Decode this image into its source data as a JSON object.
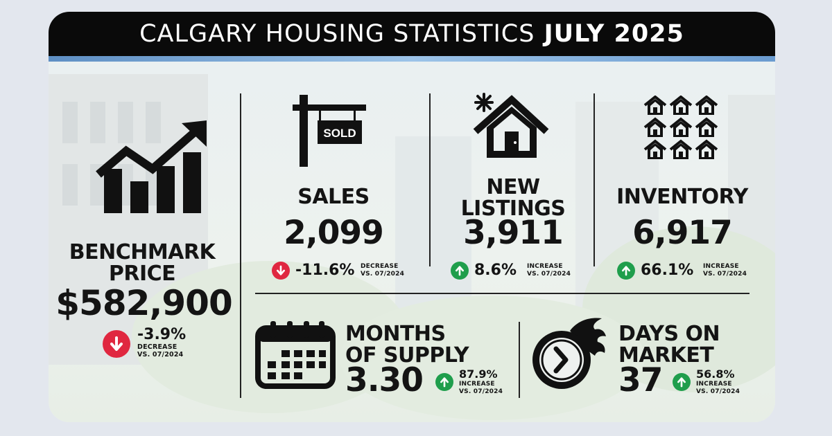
{
  "header": {
    "title_prefix": "CALGARY HOUSING STATISTICS",
    "title_suffix": "JULY 2025"
  },
  "colors": {
    "decrease": "#e02740",
    "increase": "#1f9e4c",
    "header_bg": "#0a0a0a",
    "accent_line": "#6a9bd0"
  },
  "benchmark": {
    "label_line1": "BENCHMARK",
    "label_line2": "PRICE",
    "value": "$582,900",
    "change": "-3.9%",
    "direction": "down",
    "note_line1": "DECREASE",
    "note_line2": "VS. 07/2024",
    "icon": "rising-bar-chart-icon"
  },
  "sales": {
    "label": "SALES",
    "value": "2,099",
    "change": "-11.6%",
    "direction": "down",
    "note_line1": "DECREASE",
    "note_line2": "VS. 07/2024",
    "icon": "sold-sign-icon",
    "sign_text": "SOLD"
  },
  "new_listings": {
    "label_line1": "NEW",
    "label_line2": "LISTINGS",
    "value": "3,911",
    "change": "8.6%",
    "direction": "up",
    "note_line1": "INCREASE",
    "note_line2": "VS. 07/2024",
    "icon": "new-house-icon"
  },
  "inventory": {
    "label": "INVENTORY",
    "value": "6,917",
    "change": "66.1%",
    "direction": "up",
    "note_line1": "INCREASE",
    "note_line2": "VS. 07/2024",
    "icon": "houses-grid-icon"
  },
  "months_supply": {
    "label_line1": "MONTHS",
    "label_line2": "OF SUPPLY",
    "value": "3.30",
    "change": "87.9%",
    "direction": "up",
    "note_line1": "INCREASE",
    "note_line2": "VS. 07/2024",
    "icon": "calendar-icon"
  },
  "days_on_market": {
    "label_line1": "DAYS ON",
    "label_line2": "MARKET",
    "value": "37",
    "change": "56.8%",
    "direction": "up",
    "note_line1": "INCREASE",
    "note_line2": "VS. 07/2024",
    "icon": "fast-clock-icon"
  }
}
